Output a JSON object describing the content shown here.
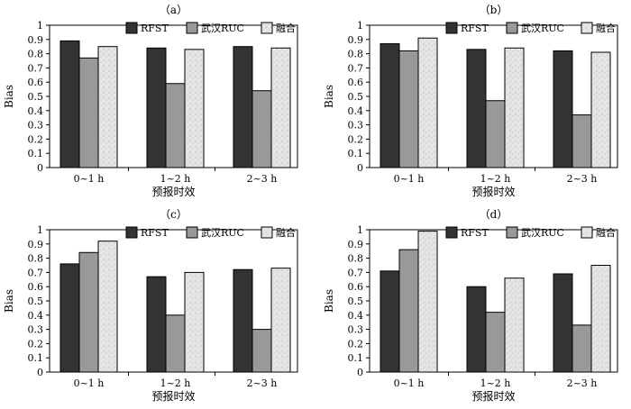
{
  "chart_data": [
    {
      "type": "bar",
      "title": "（a）",
      "xlabel": "预报时效",
      "ylabel": "Bias",
      "ylim": [
        0,
        1
      ],
      "yticks": [
        "0",
        "0.1",
        "0.2",
        "0.3",
        "0.4",
        "0.5",
        "0.6",
        "0.7",
        "0.8",
        "0.9",
        "1"
      ],
      "categories": [
        "0~1 h",
        "1~2 h",
        "2~3 h"
      ],
      "legend_position": "top-right",
      "series": [
        {
          "name": "RFST",
          "color": "#333333",
          "values": [
            0.89,
            0.84,
            0.85
          ]
        },
        {
          "name": "武汉RUC",
          "color": "#999999",
          "values": [
            0.77,
            0.59,
            0.54
          ]
        },
        {
          "name": "融合",
          "color": "#e8e8e8",
          "values": [
            0.85,
            0.83,
            0.84
          ]
        }
      ]
    },
    {
      "type": "bar",
      "title": "（b）",
      "xlabel": "预报时效",
      "ylabel": "Bias",
      "ylim": [
        0,
        1
      ],
      "yticks": [
        "0",
        "0.1",
        "0.2",
        "0.3",
        "0.4",
        "0.5",
        "0.6",
        "0.7",
        "0.8",
        "0.9",
        "1"
      ],
      "categories": [
        "0~1 h",
        "1~2 h",
        "2~3 h"
      ],
      "legend_position": "top-right",
      "series": [
        {
          "name": "RFST",
          "color": "#333333",
          "values": [
            0.87,
            0.83,
            0.82
          ]
        },
        {
          "name": "武汉RUC",
          "color": "#999999",
          "values": [
            0.82,
            0.47,
            0.37
          ]
        },
        {
          "name": "融合",
          "color": "#e8e8e8",
          "values": [
            0.91,
            0.84,
            0.81
          ]
        }
      ]
    },
    {
      "type": "bar",
      "title": "（c）",
      "xlabel": "预报时效",
      "ylabel": "Bias",
      "ylim": [
        0,
        1
      ],
      "yticks": [
        "0",
        "0.1",
        "0.2",
        "0.3",
        "0.4",
        "0.5",
        "0.6",
        "0.7",
        "0.8",
        "0.9",
        "1"
      ],
      "categories": [
        "0~1 h",
        "1~2 h",
        "2~3 h"
      ],
      "legend_position": "top-right",
      "series": [
        {
          "name": "RFST",
          "color": "#333333",
          "values": [
            0.76,
            0.67,
            0.72
          ]
        },
        {
          "name": "武汉RUC",
          "color": "#999999",
          "values": [
            0.84,
            0.4,
            0.3
          ]
        },
        {
          "name": "融合",
          "color": "#e8e8e8",
          "values": [
            0.92,
            0.7,
            0.73
          ]
        }
      ]
    },
    {
      "type": "bar",
      "title": "（d）",
      "xlabel": "预报时效",
      "ylabel": "Bias",
      "ylim": [
        0,
        1
      ],
      "yticks": [
        "0",
        "0.1",
        "0.2",
        "0.3",
        "0.4",
        "0.5",
        "0.6",
        "0.7",
        "0.8",
        "0.9",
        "1"
      ],
      "categories": [
        "0~1 h",
        "1~2 h",
        "2~3 h"
      ],
      "legend_position": "top-right",
      "series": [
        {
          "name": "RFST",
          "color": "#333333",
          "values": [
            0.71,
            0.6,
            0.69
          ]
        },
        {
          "name": "武汉RUC",
          "color": "#999999",
          "values": [
            0.86,
            0.42,
            0.33
          ]
        },
        {
          "name": "融合",
          "color": "#e8e8e8",
          "values": [
            0.99,
            0.66,
            0.75
          ]
        }
      ]
    }
  ]
}
